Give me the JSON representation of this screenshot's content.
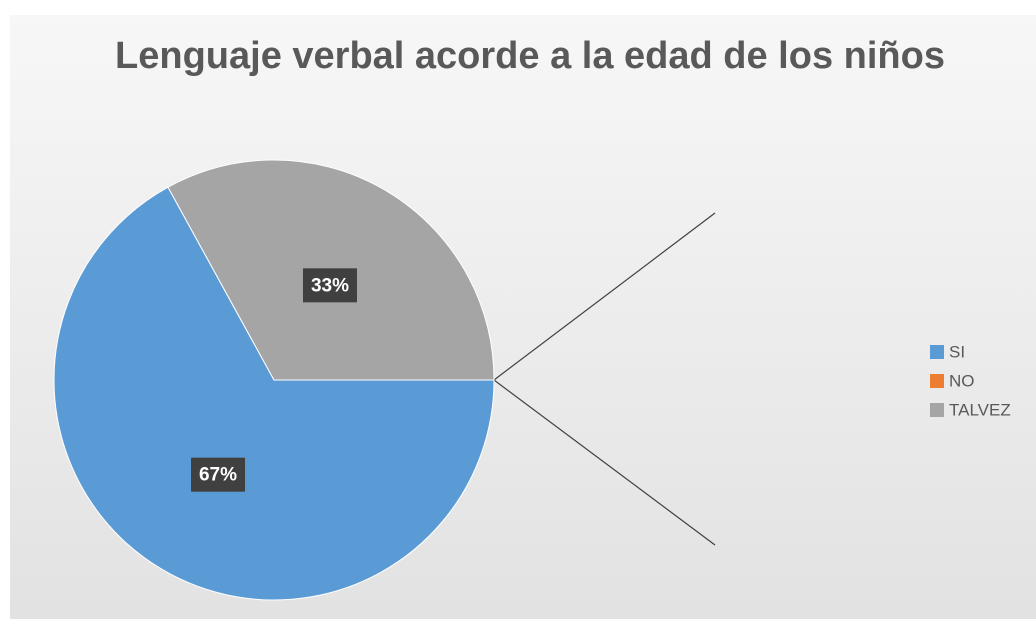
{
  "chart_data": {
    "type": "pie",
    "title": "Lenguaje verbal acorde a la edad de los niños",
    "categories": [
      "SI",
      "NO",
      "TALVEZ"
    ],
    "values": [
      67,
      0,
      33
    ],
    "value_labels": [
      "67%",
      null,
      "33%"
    ],
    "colors": [
      "#5b9bd5",
      "#ed7d31",
      "#a5a5a5"
    ],
    "legend": "right"
  }
}
